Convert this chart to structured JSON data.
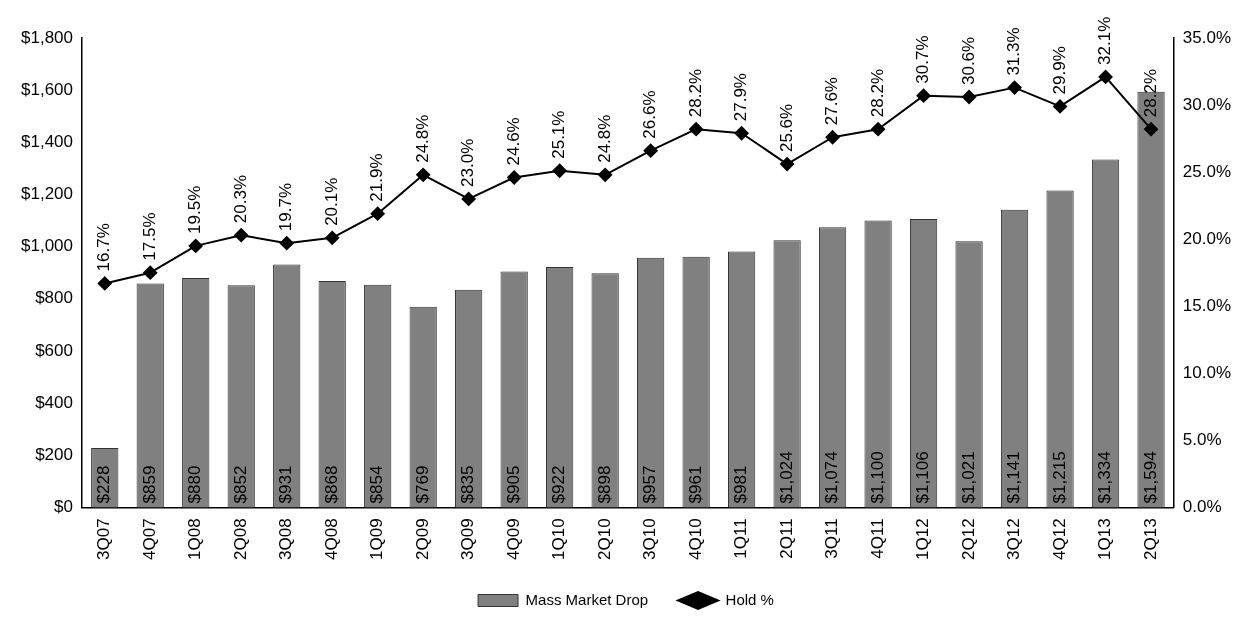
{
  "chart_data": {
    "type": "bar",
    "categories": [
      "3Q07",
      "4Q07",
      "1Q08",
      "2Q08",
      "3Q08",
      "4Q08",
      "1Q09",
      "2Q09",
      "3Q09",
      "4Q09",
      "1Q10",
      "2Q10",
      "3Q10",
      "4Q10",
      "1Q11",
      "2Q11",
      "3Q11",
      "4Q11",
      "1Q12",
      "2Q12",
      "3Q12",
      "4Q12",
      "1Q13",
      "2Q13"
    ],
    "series": [
      {
        "name": "Mass Market Drop",
        "color": "#808080",
        "values": [
          228,
          859,
          880,
          852,
          931,
          868,
          854,
          769,
          835,
          905,
          922,
          898,
          957,
          961,
          981,
          1024,
          1074,
          1100,
          1106,
          1021,
          1141,
          1215,
          1334,
          1594
        ],
        "value_labels": [
          "$228",
          "$859",
          "$880",
          "$852",
          "$931",
          "$868",
          "$854",
          "$769",
          "$835",
          "$905",
          "$922",
          "$898",
          "$957",
          "$961",
          "$981",
          "$1,024",
          "$1,074",
          "$1,100",
          "$1,106",
          "$1,021",
          "$1,141",
          "$1,215",
          "$1,334",
          "$1,594"
        ]
      },
      {
        "name": "Hold %",
        "type": "line",
        "axis": "y2",
        "color": "#000000",
        "marker": "diamond",
        "values": [
          16.7,
          17.5,
          19.5,
          20.3,
          19.7,
          20.1,
          21.9,
          24.8,
          23.0,
          24.6,
          25.1,
          24.8,
          26.6,
          28.2,
          27.9,
          25.6,
          27.6,
          28.2,
          30.7,
          30.6,
          31.3,
          29.9,
          32.1,
          28.2
        ],
        "value_labels": [
          "16.7%",
          "17.5%",
          "19.5%",
          "20.3%",
          "19.7%",
          "20.1%",
          "21.9%",
          "24.8%",
          "23.0%",
          "24.6%",
          "25.1%",
          "24.8%",
          "26.6%",
          "28.2%",
          "27.9%",
          "25.6%",
          "27.6%",
          "28.2%",
          "30.7%",
          "30.6%",
          "31.3%",
          "29.9%",
          "32.1%",
          "28.2%"
        ]
      }
    ],
    "ylim": [
      0,
      1800
    ],
    "yticks": [
      {
        "value": 0,
        "label": "$0"
      },
      {
        "value": 200,
        "label": "$200"
      },
      {
        "value": 400,
        "label": "$400"
      },
      {
        "value": 600,
        "label": "$600"
      },
      {
        "value": 800,
        "label": "$800"
      },
      {
        "value": 1000,
        "label": "$1,000"
      },
      {
        "value": 1200,
        "label": "$1,200"
      },
      {
        "value": 1400,
        "label": "$1,400"
      },
      {
        "value": 1600,
        "label": "$1,600"
      },
      {
        "value": 1800,
        "label": "$1,800"
      }
    ],
    "y2lim": [
      0,
      35
    ],
    "y2ticks": [
      {
        "value": 0,
        "label": "0.0%"
      },
      {
        "value": 5,
        "label": "5.0%"
      },
      {
        "value": 10,
        "label": "10.0%"
      },
      {
        "value": 15,
        "label": "15.0%"
      },
      {
        "value": 20,
        "label": "20.0%"
      },
      {
        "value": 25,
        "label": "25.0%"
      },
      {
        "value": 30,
        "label": "30.0%"
      },
      {
        "value": 35,
        "label": "35.0%"
      }
    ],
    "grid": false,
    "legend": "bottom"
  }
}
